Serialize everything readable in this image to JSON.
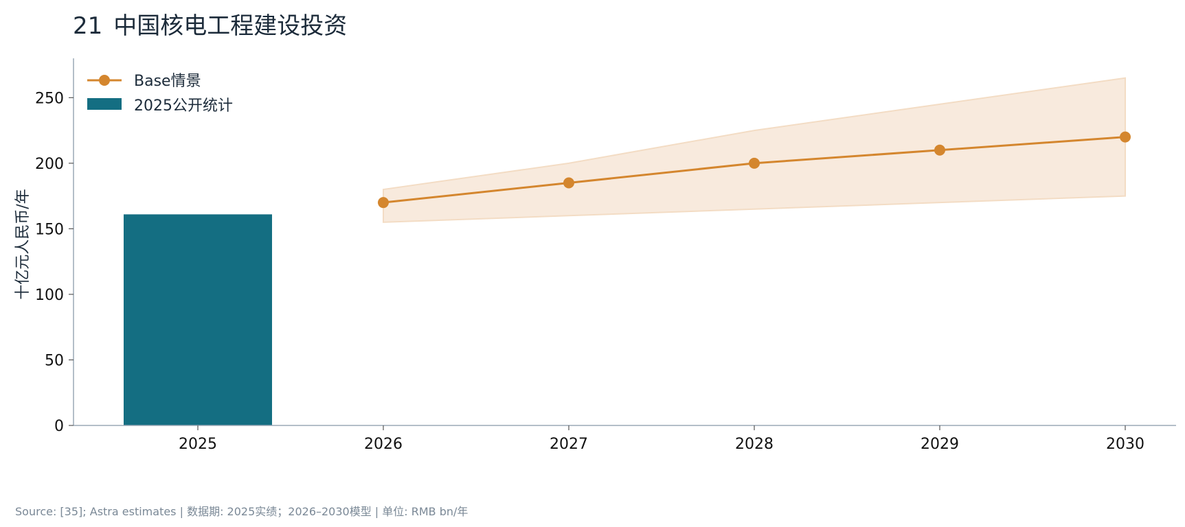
{
  "header": {
    "number": "21",
    "title": "中国核电工程建设投资"
  },
  "footer": {
    "source": "Source: [35]; Astra estimates | 数据期: 2025实绩；2026–2030模型 | 单位: RMB bn/年"
  },
  "colors": {
    "bar": "#146e82",
    "line": "#d4862e",
    "band": "#f8eadd",
    "band_edge": "#f3dcc4",
    "axis": "#9aa8b6"
  },
  "chart_data": {
    "type": "bar+line",
    "title": "中国核电工程建设投资",
    "ylabel": "十亿元人民币/年",
    "xlabel": "",
    "categories": [
      "2025",
      "2026",
      "2027",
      "2028",
      "2029",
      "2030"
    ],
    "ylim": [
      0,
      280
    ],
    "yticks": [
      0,
      50,
      100,
      150,
      200,
      250
    ],
    "grid": false,
    "legend_position": "top-left",
    "bars": {
      "name": "2025公开统计",
      "x": [
        "2025"
      ],
      "values": [
        161
      ]
    },
    "line": {
      "name": "Base情景",
      "x": [
        "2026",
        "2027",
        "2028",
        "2029",
        "2030"
      ],
      "values": [
        170,
        185,
        200,
        210,
        220
      ]
    },
    "band": {
      "x": [
        "2026",
        "2027",
        "2028",
        "2029",
        "2030"
      ],
      "low": [
        155,
        160,
        165,
        170,
        175
      ],
      "high": [
        180,
        200,
        225,
        245,
        265
      ]
    }
  }
}
